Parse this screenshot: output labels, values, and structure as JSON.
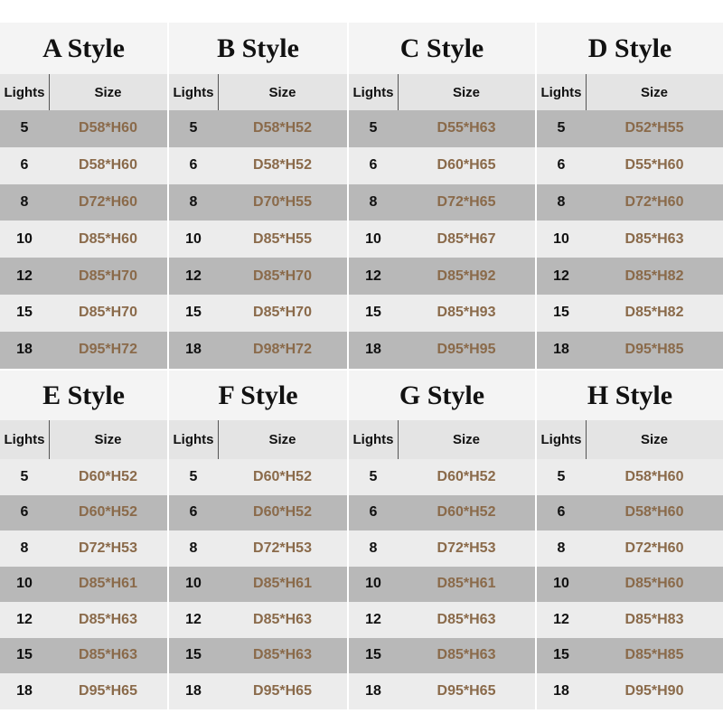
{
  "tables": [
    {
      "title": "A Style",
      "header": [
        "Lights",
        "Size"
      ],
      "rows": [
        [
          5,
          "D58*H60"
        ],
        [
          6,
          "D58*H60"
        ],
        [
          8,
          "D72*H60"
        ],
        [
          10,
          "D85*H60"
        ],
        [
          12,
          "D85*H70"
        ],
        [
          15,
          "D85*H70"
        ],
        [
          18,
          "D95*H72"
        ]
      ]
    },
    {
      "title": "B Style",
      "header": [
        "Lights",
        "Size"
      ],
      "rows": [
        [
          5,
          "D58*H52"
        ],
        [
          6,
          "D58*H52"
        ],
        [
          8,
          "D70*H55"
        ],
        [
          10,
          "D85*H55"
        ],
        [
          12,
          "D85*H70"
        ],
        [
          15,
          "D85*H70"
        ],
        [
          18,
          "D98*H72"
        ]
      ]
    },
    {
      "title": "C Style",
      "header": [
        "Lights",
        "Size"
      ],
      "rows": [
        [
          5,
          "D55*H63"
        ],
        [
          6,
          "D60*H65"
        ],
        [
          8,
          "D72*H65"
        ],
        [
          10,
          "D85*H67"
        ],
        [
          12,
          "D85*H92"
        ],
        [
          15,
          "D85*H93"
        ],
        [
          18,
          "D95*H95"
        ]
      ]
    },
    {
      "title": "D Style",
      "header": [
        "Lights",
        "Size"
      ],
      "rows": [
        [
          5,
          "D52*H55"
        ],
        [
          6,
          "D55*H60"
        ],
        [
          8,
          "D72*H60"
        ],
        [
          10,
          "D85*H63"
        ],
        [
          12,
          "D85*H82"
        ],
        [
          15,
          "D85*H82"
        ],
        [
          18,
          "D95*H85"
        ]
      ]
    },
    {
      "title": "E Style",
      "header": [
        "Lights",
        "Size"
      ],
      "rows": [
        [
          5,
          "D60*H52"
        ],
        [
          6,
          "D60*H52"
        ],
        [
          8,
          "D72*H53"
        ],
        [
          10,
          "D85*H61"
        ],
        [
          12,
          "D85*H63"
        ],
        [
          15,
          "D85*H63"
        ],
        [
          18,
          "D95*H65"
        ]
      ]
    },
    {
      "title": "F Style",
      "header": [
        "Lights",
        "Size"
      ],
      "rows": [
        [
          5,
          "D60*H52"
        ],
        [
          6,
          "D60*H52"
        ],
        [
          8,
          "D72*H53"
        ],
        [
          10,
          "D85*H61"
        ],
        [
          12,
          "D85*H63"
        ],
        [
          15,
          "D85*H63"
        ],
        [
          18,
          "D95*H65"
        ]
      ]
    },
    {
      "title": "G Style",
      "header": [
        "Lights",
        "Size"
      ],
      "rows": [
        [
          5,
          "D60*H52"
        ],
        [
          6,
          "D60*H52"
        ],
        [
          8,
          "D72*H53"
        ],
        [
          10,
          "D85*H61"
        ],
        [
          12,
          "D85*H63"
        ],
        [
          15,
          "D85*H63"
        ],
        [
          18,
          "D95*H65"
        ]
      ]
    },
    {
      "title": "H Style",
      "header": [
        "Lights",
        "Size"
      ],
      "rows": [
        [
          5,
          "D58*H60"
        ],
        [
          6,
          "D58*H60"
        ],
        [
          8,
          "D72*H60"
        ],
        [
          10,
          "D85*H60"
        ],
        [
          12,
          "D85*H83"
        ],
        [
          15,
          "D85*H85"
        ],
        [
          18,
          "D95*H90"
        ]
      ]
    }
  ]
}
